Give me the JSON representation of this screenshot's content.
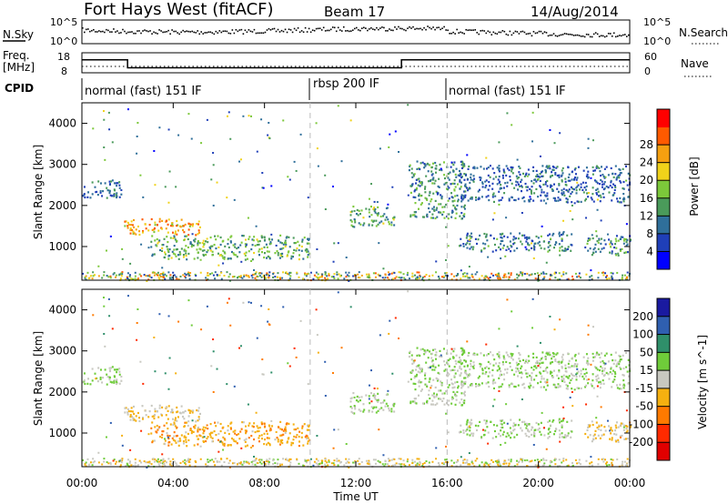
{
  "header": {
    "radar_title": "Fort Hays West (fitACF)",
    "beam": "Beam 17",
    "date": "14/Aug/2014"
  },
  "noise_panel": {
    "left_label": "N.Sky",
    "right_label": "N.Search",
    "left_ticks": [
      "10^5",
      "10^0"
    ],
    "right_ticks": [
      "10^5",
      "10^0"
    ]
  },
  "freq_panel": {
    "left_label_1": "Freq.",
    "left_label_2": "[MHz]",
    "right_label": "Nave",
    "left_ticks": [
      "18",
      "8"
    ],
    "right_ticks": [
      "60",
      "0"
    ],
    "freq_mhz_steps": [
      [
        0.0,
        14.5
      ],
      [
        2.0,
        10.5
      ],
      [
        14.0,
        14.5
      ],
      [
        24.0,
        14.5
      ]
    ]
  },
  "cpid": {
    "label": "CPID",
    "segments": [
      {
        "start_hr": 0.0,
        "end_hr": 10.0,
        "text": "normal (fast) 151 IF"
      },
      {
        "start_hr": 10.0,
        "end_hr": 16.0,
        "text": "rbsp 200 IF"
      },
      {
        "start_hr": 16.0,
        "end_hr": 24.0,
        "text": "normal (fast) 151 IF"
      }
    ]
  },
  "y_axis_label": "Slant Range [km]",
  "y_ticks": [
    "1000",
    "2000",
    "3000",
    "4000"
  ],
  "x_axis_label": "Time UT",
  "x_ticks": [
    "00:00",
    "04:00",
    "08:00",
    "12:00",
    "16:00",
    "20:00",
    "00:00"
  ],
  "power_colorbar": {
    "label": "Power [dB]",
    "ticks": [
      "4",
      "8",
      "12",
      "16",
      "20",
      "24",
      "28"
    ],
    "colors": [
      "#0000ff",
      "#1f3fb8",
      "#2f6f9a",
      "#4a9a5a",
      "#7cc83a",
      "#f0d21a",
      "#f5a010",
      "#ff5a00",
      "#ff0000"
    ]
  },
  "velocity_colorbar": {
    "label": "Velocity [m s^-1]",
    "ticks": [
      "200",
      "100",
      "50",
      "15",
      "-15",
      "-50",
      "-100",
      "-200"
    ],
    "colors": [
      "#1a1aa0",
      "#2f5fb0",
      "#2f8f6a",
      "#6fcc3a",
      "#c8c8c0",
      "#f5b010",
      "#ff7a00",
      "#ff2a00",
      "#e00000"
    ]
  },
  "chart_data": {
    "type": "heatmap",
    "x_range_hours": [
      0,
      24
    ],
    "y_range_km": [
      180,
      4500
    ],
    "mode_change_hours": [
      10.0,
      16.0
    ],
    "echo_regions": [
      {
        "t0": 0.0,
        "t1": 1.7,
        "r0": 2200,
        "r1": 2650,
        "power_db": 6,
        "velocity": 15
      },
      {
        "t0": 1.8,
        "t1": 5.2,
        "r0": 1300,
        "r1": 1700,
        "power_db": 22,
        "velocity": -15
      },
      {
        "t0": 3.0,
        "t1": 10.0,
        "r0": 700,
        "r1": 1300,
        "power_db": 12,
        "velocity": -40
      },
      {
        "t0": 11.7,
        "t1": 13.7,
        "r0": 1500,
        "r1": 2000,
        "power_db": 12,
        "velocity": 15
      },
      {
        "t0": 14.3,
        "t1": 16.8,
        "r0": 1700,
        "r1": 3100,
        "power_db": 10,
        "velocity": 15
      },
      {
        "t0": 16.5,
        "t1": 21.5,
        "r0": 900,
        "r1": 1350,
        "power_db": 8,
        "velocity": 15
      },
      {
        "t0": 16.5,
        "t1": 24.0,
        "r0": 2100,
        "r1": 3000,
        "power_db": 6,
        "velocity": 15
      },
      {
        "t0": 22.0,
        "t1": 24.0,
        "r0": 800,
        "r1": 1300,
        "power_db": 10,
        "velocity": -15
      }
    ]
  }
}
